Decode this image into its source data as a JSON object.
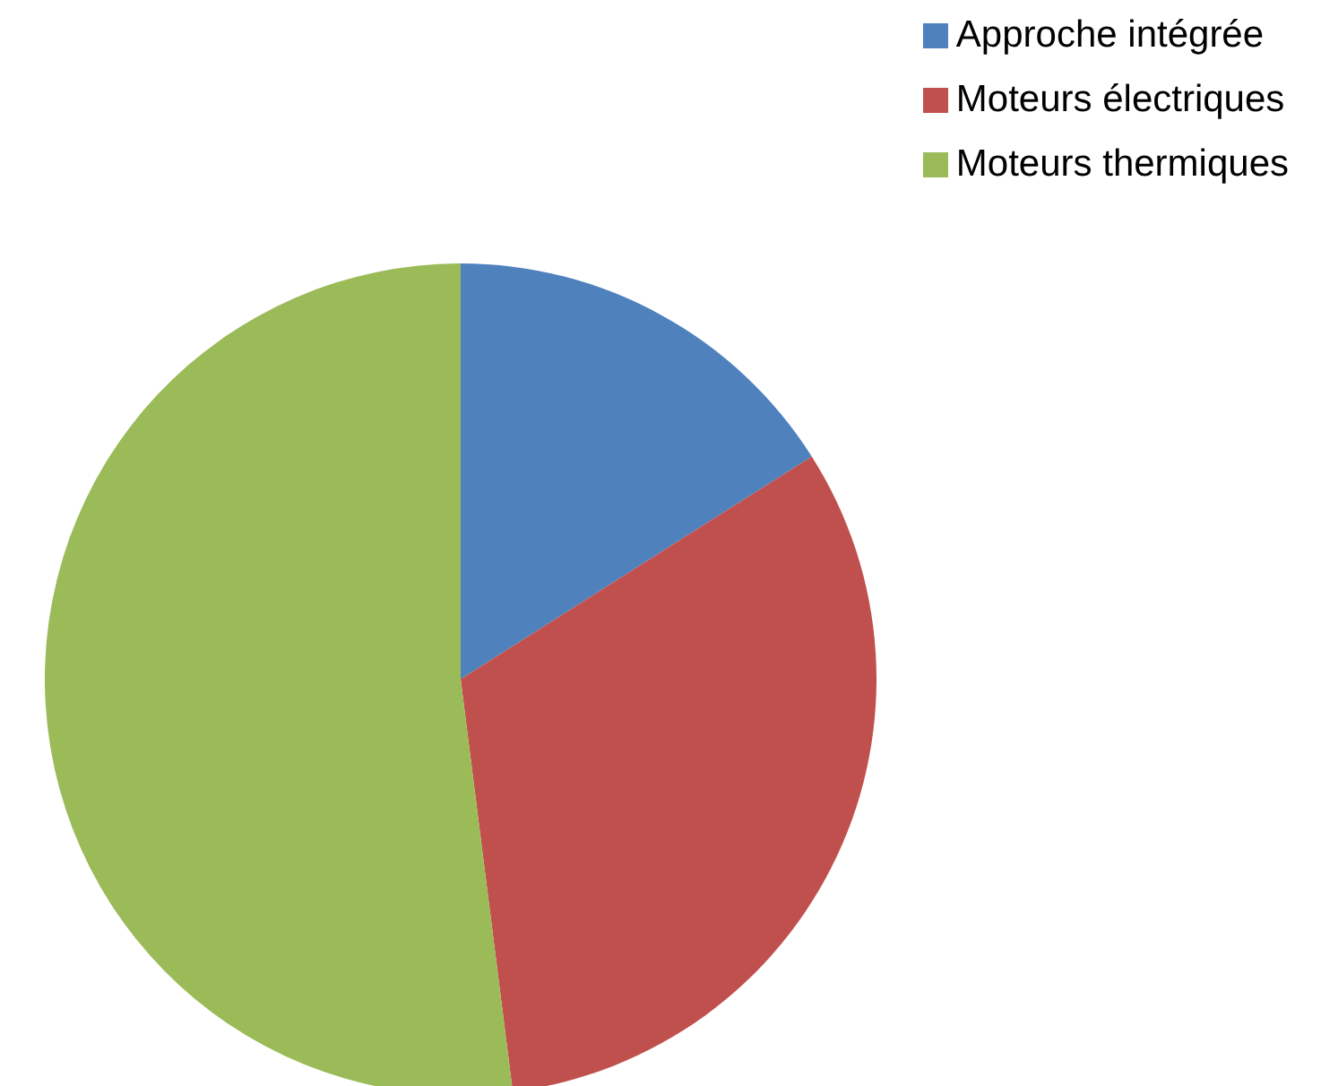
{
  "chart_data": {
    "type": "pie",
    "categories": [
      "Approche intégrée",
      "Moteurs électriques",
      "Moteurs thermiques"
    ],
    "values": [
      16,
      32,
      52
    ],
    "colors": [
      "#4f81bd",
      "#c0504d",
      "#9bbb59"
    ],
    "legend": "top right"
  }
}
